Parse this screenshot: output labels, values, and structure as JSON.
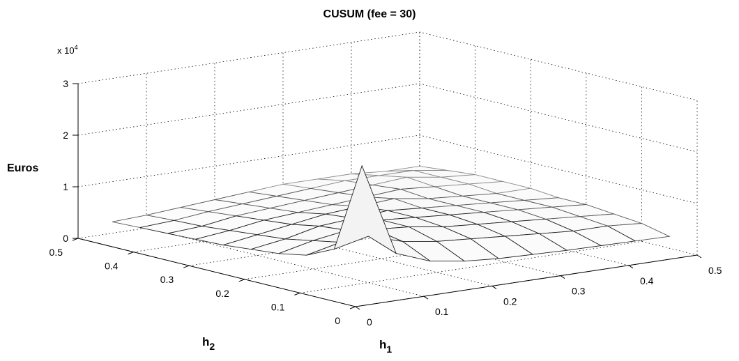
{
  "chart_data": {
    "type": "surface",
    "title": "CUSUM (fee = 30)",
    "zlabel": "Euros",
    "xlabel_main": "h",
    "xlabel_sub": "1",
    "ylabel_main": "h",
    "ylabel_sub": "2",
    "zscale_label": "x 10",
    "zscale_exp": "4",
    "zticks": [
      "0",
      "1",
      "2",
      "3"
    ],
    "h1ticks": [
      "0",
      "0.1",
      "0.2",
      "0.3",
      "0.4",
      "0.5"
    ],
    "h2ticks": [
      "0",
      "0.1",
      "0.2",
      "0.3",
      "0.4",
      "0.5"
    ],
    "xlim": [
      0,
      0.5
    ],
    "ylim": [
      0,
      0.5
    ],
    "zlim": [
      0,
      30000
    ],
    "grid": true,
    "x": [
      0.05,
      0.1,
      0.15,
      0.2,
      0.25,
      0.3,
      0.35,
      0.4,
      0.45,
      0.5
    ],
    "y": [
      0.05,
      0.1,
      0.15,
      0.2,
      0.25,
      0.3,
      0.35,
      0.4,
      0.45,
      0.5
    ],
    "z": [
      [
        25000,
        7000,
        4500,
        3500,
        3000,
        2800,
        2600,
        2500,
        2400,
        2300
      ],
      [
        7500,
        9000,
        7000,
        6000,
        5500,
        5000,
        4500,
        4000,
        4000,
        3500
      ],
      [
        5000,
        6500,
        8000,
        7500,
        6500,
        6000,
        5500,
        5000,
        4500,
        4000
      ],
      [
        4000,
        5500,
        6500,
        7500,
        7000,
        6500,
        6000,
        5500,
        5000,
        4500
      ],
      [
        3500,
        4500,
        6000,
        6500,
        7000,
        6500,
        6000,
        5500,
        5000,
        4500
      ],
      [
        3000,
        4000,
        5000,
        6000,
        6500,
        7000,
        6000,
        5500,
        5000,
        5000
      ],
      [
        2800,
        3500,
        4500,
        5000,
        5500,
        6000,
        6500,
        6000,
        5500,
        5000
      ],
      [
        2600,
        3000,
        4000,
        4500,
        5000,
        5500,
        6000,
        6500,
        5500,
        5000
      ],
      [
        2400,
        2800,
        3500,
        4000,
        4500,
        5000,
        5500,
        5500,
        5500,
        4500
      ],
      [
        2200,
        2500,
        3000,
        3500,
        4000,
        4500,
        4500,
        4500,
        4000,
        4000
      ]
    ]
  }
}
